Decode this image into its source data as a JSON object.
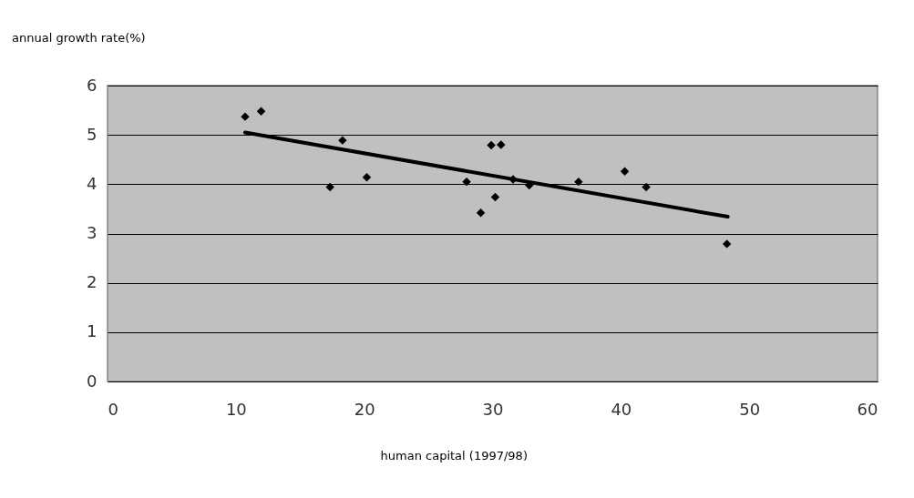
{
  "chart_data": {
    "type": "scatter",
    "xlabel": "human capital (1997/98)",
    "ylabel": "annual growth rate(%)",
    "xlim": [
      0,
      60
    ],
    "xticks": [
      0,
      10,
      20,
      30,
      40,
      50,
      60
    ],
    "ylim": [
      0,
      6
    ],
    "yticks": [
      0,
      1,
      2,
      3,
      4,
      5,
      6
    ],
    "grid": "y",
    "series": [
      {
        "type": "line",
        "color": "#000000",
        "x": [
          10.72,
          48.33
        ],
        "values": [
          5.05,
          3.34
        ]
      },
      {
        "marker": "diamond",
        "color": "#000000",
        "x": [
          10.72,
          11.97,
          17.34,
          18.31,
          20.2,
          27.98,
          29.08,
          29.9,
          30.66,
          30.21,
          31.6,
          32.86,
          36.7,
          40.3,
          41.97,
          48.26
        ],
        "values": [
          5.37,
          5.48,
          3.94,
          4.89,
          4.14,
          4.05,
          3.42,
          4.79,
          4.8,
          3.74,
          4.1,
          3.98,
          4.05,
          4.26,
          3.94,
          2.79
        ]
      }
    ]
  }
}
